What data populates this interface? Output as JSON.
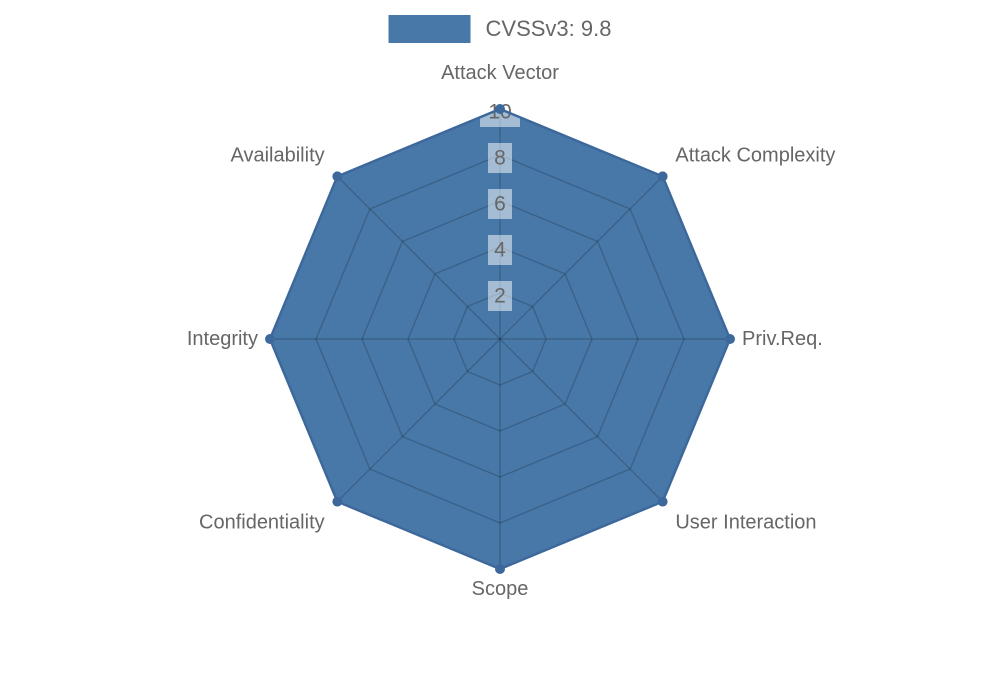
{
  "chart_data": {
    "type": "radar",
    "polar": true,
    "title": "",
    "categories": [
      "Attack Vector",
      "Attack Complexity",
      "Priv.Req.",
      "User Interaction",
      "Scope",
      "Confidentiality",
      "Integrity",
      "Availability"
    ],
    "series": [
      {
        "name": "CVSSv3: 9.8",
        "values": [
          10,
          10,
          10,
          10,
          10,
          10,
          10,
          10
        ]
      }
    ],
    "radial_ticks": [
      2,
      4,
      6,
      8,
      10
    ],
    "rlim": [
      0,
      10
    ],
    "grid": true,
    "legend_position": "top-center"
  },
  "colors": {
    "series_fill": "#4878A8",
    "series_stroke": "#3D689B",
    "grid": "rgba(0,0,0,0.18)",
    "label_text": "#666666",
    "tick_text": "#666666",
    "tick_bg": "rgba(255,255,255,0.5)",
    "background": "#FFFFFF"
  }
}
